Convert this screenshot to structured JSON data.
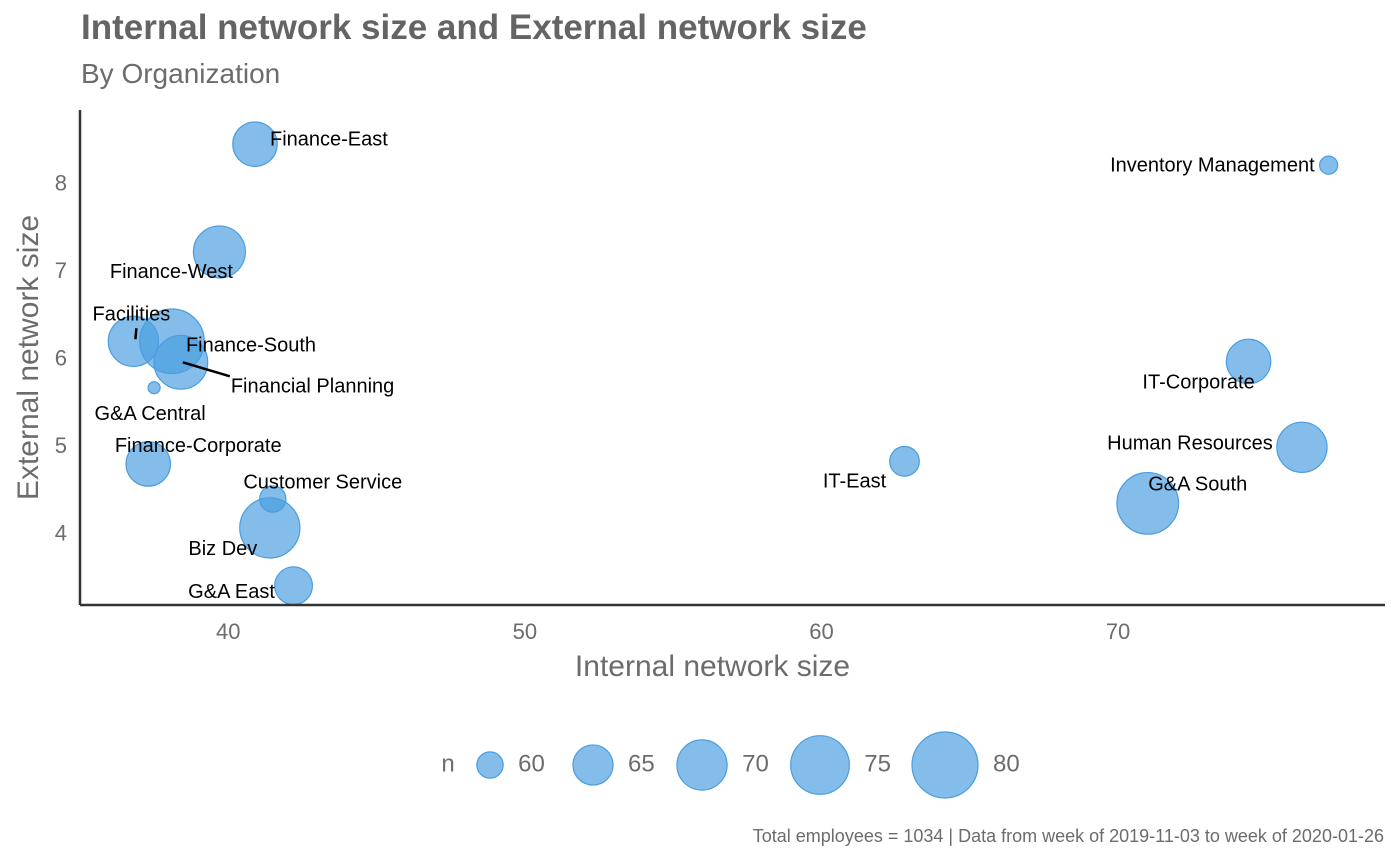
{
  "chart_data": {
    "type": "scatter",
    "title": "Internal network size and External network size",
    "subtitle": "By Organization",
    "xlabel": "Internal network size",
    "ylabel": "External network size",
    "xlim": [
      35,
      79
    ],
    "ylim": [
      3.2,
      8.85
    ],
    "xticks": [
      40,
      50,
      60,
      70
    ],
    "yticks": [
      4,
      5,
      6,
      7,
      8
    ],
    "grid": false,
    "point_color": "#4a9de0",
    "axis_color": "#333333",
    "legend": {
      "title": "n",
      "position": "bottom",
      "values": [
        60,
        65,
        70,
        75,
        80
      ]
    },
    "size_range": [
      57,
      83
    ],
    "points": [
      {
        "label": "Finance-East",
        "x": 40.9,
        "y": 8.46,
        "n": 67
      },
      {
        "label": "Inventory Management",
        "x": 77.1,
        "y": 8.22,
        "n": 58
      },
      {
        "label": "Finance-West",
        "x": 39.7,
        "y": 7.23,
        "n": 71
      },
      {
        "label": "Facilities",
        "x": 36.8,
        "y": 6.21,
        "n": 70
      },
      {
        "label": "Finance-South",
        "x": 38.1,
        "y": 6.21,
        "n": 79
      },
      {
        "label": "Financial Planning",
        "x": 38.4,
        "y": 5.97,
        "n": 72
      },
      {
        "label": "G&A Central",
        "x": 37.5,
        "y": 5.68,
        "n": 56
      },
      {
        "label": "IT-Corporate",
        "x": 74.4,
        "y": 5.98,
        "n": 67
      },
      {
        "label": "Finance-Corporate",
        "x": 37.3,
        "y": 4.81,
        "n": 67
      },
      {
        "label": "Human Resources",
        "x": 76.2,
        "y": 5.0,
        "n": 70
      },
      {
        "label": "IT-East",
        "x": 62.8,
        "y": 4.84,
        "n": 61
      },
      {
        "label": "Customer Service",
        "x": 41.5,
        "y": 4.41,
        "n": 60
      },
      {
        "label": "G&A South",
        "x": 71.0,
        "y": 4.36,
        "n": 77
      },
      {
        "label": "Biz Dev",
        "x": 41.4,
        "y": 4.08,
        "n": 76
      },
      {
        "label": "G&A East",
        "x": 42.2,
        "y": 3.42,
        "n": 64
      }
    ]
  },
  "caption": "Total employees = 1034 | Data from week of 2019-11-03 to week of 2020-01-26"
}
